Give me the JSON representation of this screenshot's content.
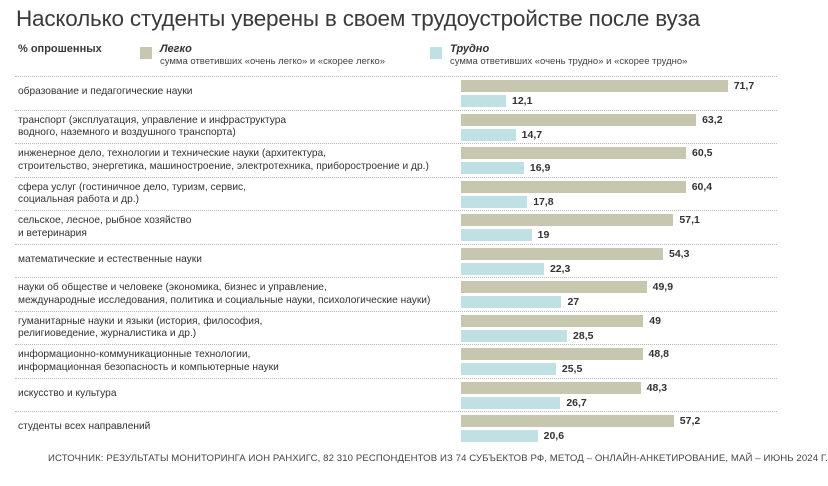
{
  "chart_data": {
    "type": "bar",
    "orientation": "horizontal",
    "title": "Насколько студенты уверены в своем трудоустройстве после вуза",
    "ylabel": "% опрошенных",
    "legend": [
      {
        "name": "Легко",
        "description": "сумма ответивших «очень легко» и «скорее легко»",
        "color": "#c7c6ae"
      },
      {
        "name": "Трудно",
        "description": "сумма ответивших «очень трудно» и «скорее трудно»",
        "color": "#bfe1e3"
      }
    ],
    "categories": [
      [
        "образование и педагогические науки"
      ],
      [
        "транспорт (эксплуатация, управление и инфраструктура",
        "водного, наземного и воздушного транспорта)"
      ],
      [
        "инженерное дело, технологии и технические науки (архитектура,",
        "строительство, энергетика, машиностроение, электротехника, приборостроение и др.)"
      ],
      [
        "сфера услуг (гостиничное дело, туризм, сервис,",
        "социальная работа и др.)"
      ],
      [
        "сельское, лесное, рыбное хозяйство",
        "и ветеринария"
      ],
      [
        "математические и естественные науки"
      ],
      [
        "науки об обществе и человеке (экономика, бизнес и управление,",
        "международные исследования, политика и социальные науки, психологические науки)"
      ],
      [
        "гуманитарные науки и языки (история, философия,",
        "религиоведение, журналистика и др.)"
      ],
      [
        "информационно-коммуникационные технологии,",
        "информационная безопасность и компьютерные науки"
      ],
      [
        "искусство и культура"
      ],
      [
        "студенты всех направлений"
      ]
    ],
    "series": [
      {
        "name": "Легко",
        "values": [
          71.7,
          63.2,
          60.5,
          60.4,
          57.1,
          54.3,
          49.9,
          49,
          48.8,
          48.3,
          57.2
        ],
        "labels": [
          "71,7",
          "63,2",
          "60,5",
          "60,4",
          "57,1",
          "54,3",
          "49,9",
          "49",
          "48,8",
          "48,3",
          "57,2"
        ]
      },
      {
        "name": "Трудно",
        "values": [
          12.1,
          14.7,
          16.9,
          17.8,
          19,
          22.3,
          27,
          28.5,
          25.5,
          26.7,
          20.6
        ],
        "labels": [
          "12,1",
          "14,7",
          "16,9",
          "17,8",
          "19",
          "22,3",
          "27",
          "28,5",
          "25,5",
          "26,7",
          "20,6"
        ]
      }
    ],
    "xlim": [
      0,
      100
    ],
    "grid": false,
    "legend_position": "top"
  },
  "source": "ИСТОЧНИК: РЕЗУЛЬТАТЫ МОНИТОРИНГА ИОН РАНХИГС, 82 310 РЕСПОНДЕНТОВ ИЗ 74 СУБЪЕКТОВ РФ, МЕТОД – ОНЛАЙН-АНКЕТИРОВАНИЕ, МАЙ – ИЮНЬ 2024 Г."
}
